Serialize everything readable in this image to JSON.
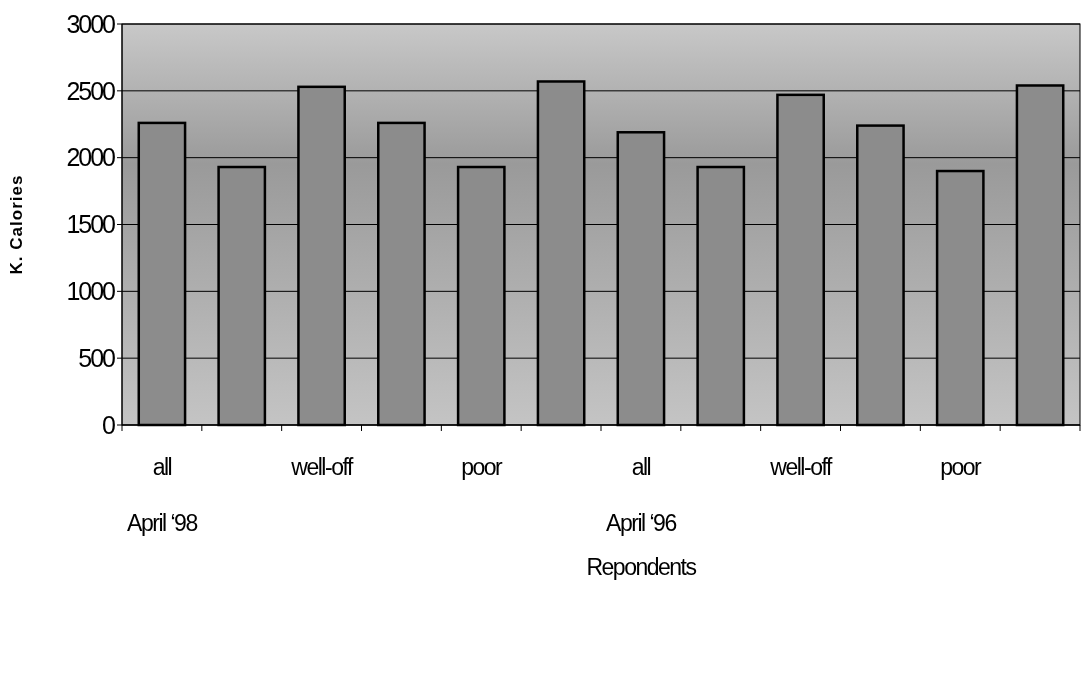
{
  "chart_data": {
    "type": "bar",
    "xlabel": "Repondents",
    "ylabel": "K. Calories",
    "categories": [
      "all\nApril ‘98",
      null,
      "well-off",
      null,
      "poor",
      null,
      "all\nApril ‘96",
      null,
      "well-off",
      null,
      "poor",
      null
    ],
    "values": [
      2260,
      1930,
      2530,
      2260,
      1930,
      2570,
      2190,
      1930,
      2470,
      2240,
      1900,
      2540
    ],
    "color": "#8c8c8c",
    "ylim": [
      0,
      3000
    ],
    "yticks": [
      0,
      500,
      1000,
      1500,
      2000,
      2500,
      3000
    ],
    "grid": "y"
  }
}
